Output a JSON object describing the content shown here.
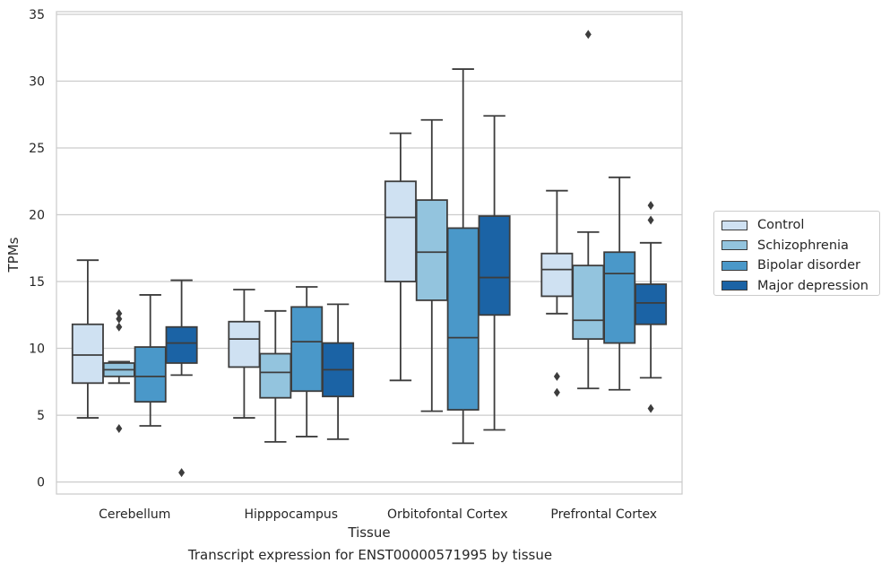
{
  "chart_data": {
    "type": "box",
    "caption": "Transcript expression for ENST00000571995 by tissue",
    "xlabel": "Tissue",
    "ylabel": "TPMs",
    "ylim": [
      -0.9,
      35.2
    ],
    "yticks": [
      0,
      5,
      10,
      15,
      20,
      25,
      30,
      35
    ],
    "grid": true,
    "legend_position": "right",
    "categories": [
      "Cerebellum",
      "Hipppocampus",
      "Orbitofontal Cortex",
      "Prefrontal Cortex"
    ],
    "series": [
      {
        "name": "Control",
        "color": "#cfe1f2",
        "boxes": [
          {
            "whislo": 4.8,
            "q1": 7.4,
            "med": 9.5,
            "q3": 11.8,
            "whishi": 16.6,
            "fliers": []
          },
          {
            "whislo": 4.8,
            "q1": 8.6,
            "med": 10.7,
            "q3": 12.0,
            "whishi": 14.4,
            "fliers": []
          },
          {
            "whislo": 7.6,
            "q1": 15.0,
            "med": 19.8,
            "q3": 22.5,
            "whishi": 26.1,
            "fliers": []
          },
          {
            "whislo": 12.6,
            "q1": 13.9,
            "med": 15.9,
            "q3": 17.1,
            "whishi": 21.8,
            "fliers": [
              7.9,
              6.7
            ]
          }
        ]
      },
      {
        "name": "Schizophrenia",
        "color": "#93c4de",
        "boxes": [
          {
            "whislo": 7.4,
            "q1": 7.9,
            "med": 8.4,
            "q3": 8.9,
            "whishi": 9.0,
            "fliers": [
              12.6,
              12.2,
              11.6,
              4.0
            ]
          },
          {
            "whislo": 3.0,
            "q1": 6.3,
            "med": 8.2,
            "q3": 9.6,
            "whishi": 12.8,
            "fliers": []
          },
          {
            "whislo": 5.3,
            "q1": 13.6,
            "med": 17.2,
            "q3": 21.1,
            "whishi": 27.1,
            "fliers": []
          },
          {
            "whislo": 7.0,
            "q1": 10.7,
            "med": 12.1,
            "q3": 16.2,
            "whishi": 18.7,
            "fliers": [
              33.5
            ]
          }
        ]
      },
      {
        "name": "Bipolar disorder",
        "color": "#4a98c9",
        "boxes": [
          {
            "whislo": 4.2,
            "q1": 6.0,
            "med": 7.9,
            "q3": 10.1,
            "whishi": 14.0,
            "fliers": []
          },
          {
            "whislo": 3.4,
            "q1": 6.8,
            "med": 10.5,
            "q3": 13.1,
            "whishi": 14.6,
            "fliers": []
          },
          {
            "whislo": 2.9,
            "q1": 5.4,
            "med": 10.8,
            "q3": 19.0,
            "whishi": 30.9,
            "fliers": []
          },
          {
            "whislo": 6.9,
            "q1": 10.4,
            "med": 15.6,
            "q3": 17.2,
            "whishi": 22.8,
            "fliers": []
          }
        ]
      },
      {
        "name": "Major depression",
        "color": "#1b63a5",
        "boxes": [
          {
            "whislo": 8.0,
            "q1": 8.9,
            "med": 10.4,
            "q3": 11.6,
            "whishi": 15.1,
            "fliers": [
              0.7
            ]
          },
          {
            "whislo": 3.2,
            "q1": 6.4,
            "med": 8.4,
            "q3": 10.4,
            "whishi": 13.3,
            "fliers": []
          },
          {
            "whislo": 3.9,
            "q1": 12.5,
            "med": 15.3,
            "q3": 19.9,
            "whishi": 27.4,
            "fliers": []
          },
          {
            "whislo": 7.8,
            "q1": 11.8,
            "med": 13.4,
            "q3": 14.8,
            "whishi": 17.9,
            "fliers": [
              20.7,
              19.6,
              5.5
            ]
          }
        ]
      }
    ]
  }
}
